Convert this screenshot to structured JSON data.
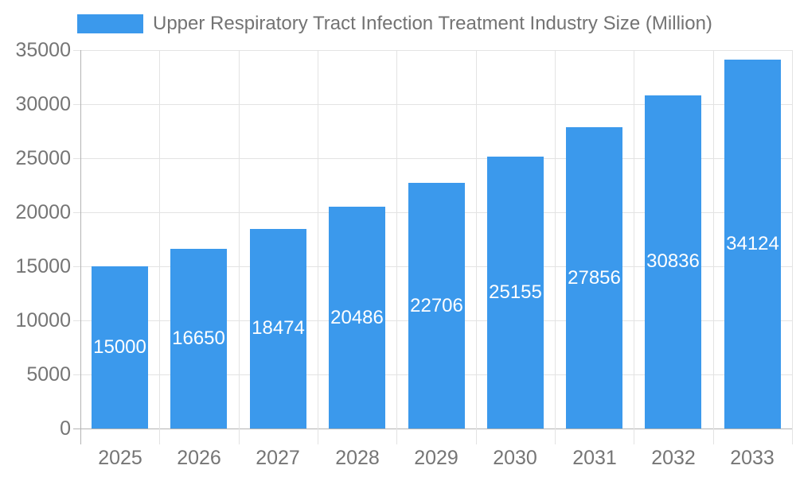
{
  "legend": {
    "label": "Upper Respiratory Tract Infection Treatment Industry Size (Million)"
  },
  "colors": {
    "bar": "#3b99ec",
    "grid": "#e3e3e3",
    "axis": "#b3b3b3",
    "tick_text": "#757575",
    "legend_text": "#737373",
    "value_label": "#ffffff",
    "background": "#ffffff"
  },
  "chart_data": {
    "type": "bar",
    "title": "Upper Respiratory Tract Infection Treatment Industry Size (Million)",
    "categories": [
      "2025",
      "2026",
      "2027",
      "2028",
      "2029",
      "2030",
      "2031",
      "2032",
      "2033"
    ],
    "values": [
      15000,
      16650,
      18474,
      20486,
      22706,
      25155,
      27856,
      30836,
      34124
    ],
    "xlabel": "",
    "ylabel": "",
    "ylim": [
      0,
      35000
    ],
    "yticks": [
      0,
      5000,
      10000,
      15000,
      20000,
      25000,
      30000,
      35000
    ],
    "grid": true,
    "legend_position": "top-left",
    "bar_labels": "inside-center"
  }
}
